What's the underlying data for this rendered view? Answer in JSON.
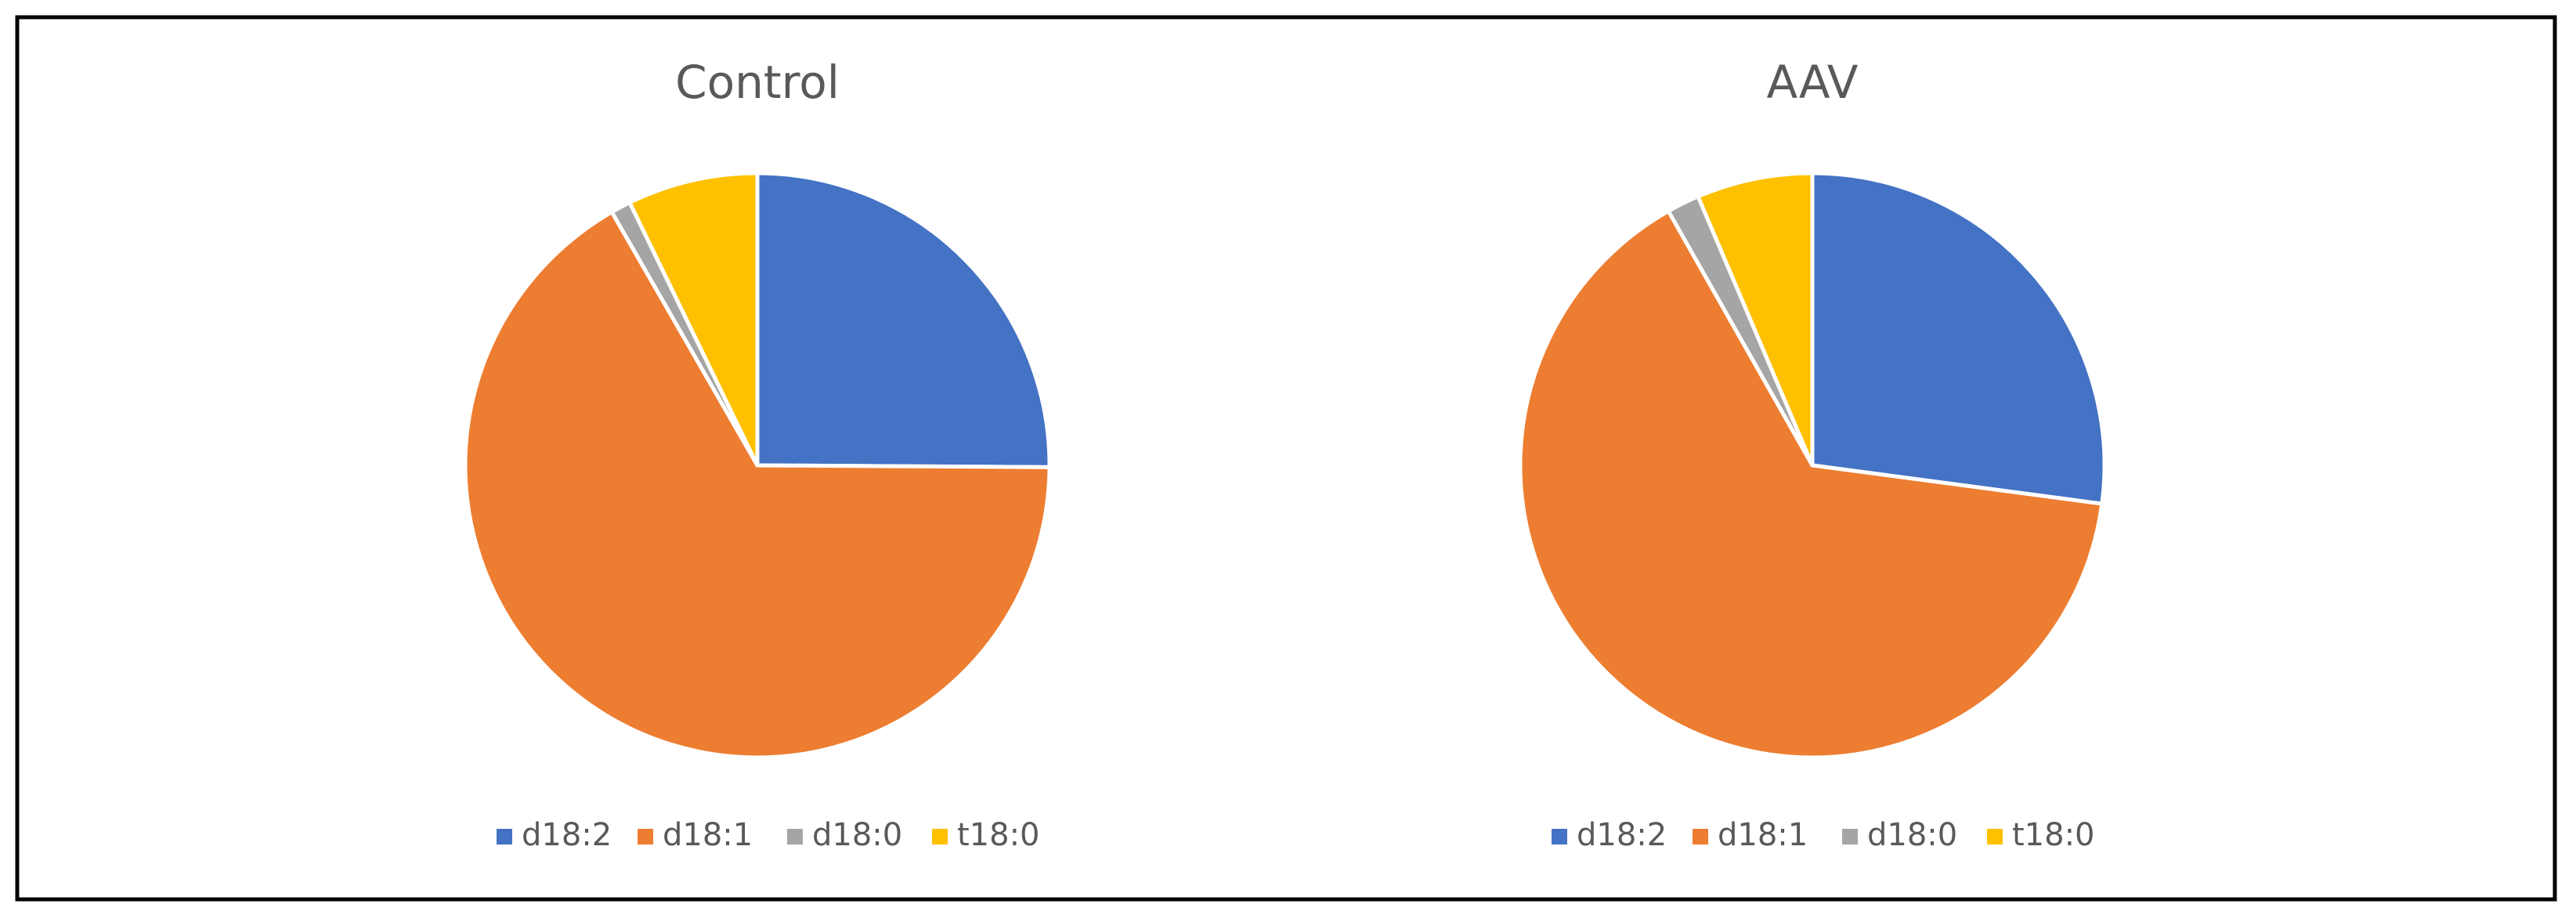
{
  "chart_data": [
    {
      "type": "pie",
      "title": "Control",
      "categories": [
        "d18:2",
        "d18:1",
        "d18:0",
        "t18:0"
      ],
      "values": [
        25.1,
        66.6,
        1.1,
        7.2
      ],
      "colors": [
        "#4472c4",
        "#ed7d31",
        "#a5a5a5",
        "#ffc000"
      ],
      "legend": "bottom"
    },
    {
      "type": "pie",
      "title": "AAV",
      "categories": [
        "d18:2",
        "d18:1",
        "d18:0",
        "t18:0"
      ],
      "values": [
        27.1,
        64.7,
        1.8,
        6.4
      ],
      "colors": [
        "#4472c4",
        "#ed7d31",
        "#a5a5a5",
        "#ffc000"
      ],
      "legend": "bottom"
    }
  ]
}
